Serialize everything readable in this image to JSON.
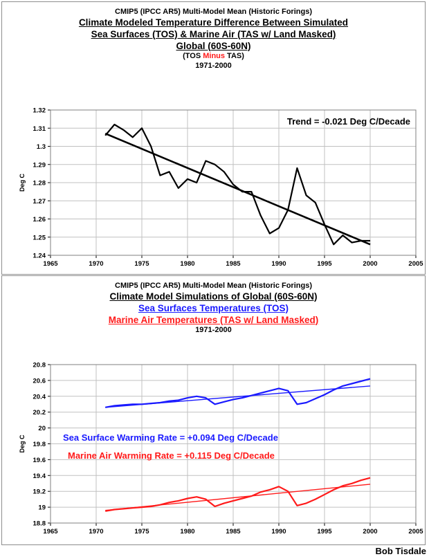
{
  "charts": {
    "top": {
      "title_lines": [
        "CMIP5 (IPCC AR5) Multi-Model Mean (Historic Forings)",
        "Climate Modeled Temperature Difference Between Simulated",
        "Sea Surfaces (TOS) & Marine Air (TAS w/ Land Masked)",
        "Global (60S-60N)"
      ],
      "subtitle_parts": [
        "(TOS ",
        "Minus",
        " TAS)"
      ],
      "period": "1971-2000",
      "annotation": "Trend = -0.021 Deg C/Decade"
    },
    "bottom": {
      "title_line1": "CMIP5 (IPCC AR5) Multi-Model Mean (Historic Forings)",
      "title_line2": "Climate Model Simulations of Global (60S-60N)",
      "series_title_blue": "Sea Surfaces Temperatures (TOS)",
      "series_title_red": "Marine Air Temperatures (TAS w/ Land Masked)",
      "period": "1971-2000",
      "annotation_blue": "Sea Surface Warming Rate = +0.094 Deg C/Decade",
      "annotation_red": "Marine Air Warming Rate = +0.115 Deg C/Decade"
    }
  },
  "credit": "Bob Tisdale",
  "colors": {
    "blue": "#1a1aff",
    "red": "#ff1a1a",
    "black": "#000000",
    "grid": "#c0c0c0"
  },
  "chart_data": [
    {
      "type": "line",
      "ylabel": "Deg C",
      "xlim": [
        1965,
        2005
      ],
      "ylim": [
        1.24,
        1.32
      ],
      "xticks": [
        "1965",
        "1970",
        "1975",
        "1980",
        "1985",
        "1990",
        "1995",
        "2000",
        "2005"
      ],
      "yticks": [
        "1.24",
        "1.25",
        "1.26",
        "1.27",
        "1.28",
        "1.29",
        "1.3",
        "1.31",
        "1.32"
      ],
      "grid": true,
      "series": [
        {
          "color": "#000000",
          "x": [
            1971,
            1972,
            1973,
            1974,
            1975,
            1976,
            1977,
            1978,
            1979,
            1980,
            1981,
            1982,
            1983,
            1984,
            1985,
            1986,
            1987,
            1988,
            1989,
            1990,
            1991,
            1992,
            1993,
            1994,
            1995,
            1996,
            1997,
            1998,
            1999,
            2000
          ],
          "values": [
            1.306,
            1.312,
            1.309,
            1.305,
            1.31,
            1.3,
            1.284,
            1.286,
            1.277,
            1.282,
            1.28,
            1.292,
            1.29,
            1.286,
            1.279,
            1.275,
            1.275,
            1.262,
            1.252,
            1.255,
            1.265,
            1.288,
            1.273,
            1.269,
            1.257,
            1.246,
            1.251,
            1.247,
            1.248,
            1.248
          ]
        },
        {
          "color": "#000000",
          "x": [
            1971,
            2000
          ],
          "values": [
            1.307,
            1.246
          ]
        }
      ]
    },
    {
      "type": "line",
      "ylabel": "Deg C",
      "xlim": [
        1965,
        2005
      ],
      "ylim": [
        18.8,
        20.8
      ],
      "xticks": [
        "1965",
        "1970",
        "1975",
        "1980",
        "1985",
        "1990",
        "1995",
        "2000",
        "2005"
      ],
      "yticks": [
        "18.8",
        "19",
        "19.2",
        "19.4",
        "19.6",
        "19.8",
        "20",
        "20.2",
        "20.4",
        "20.6",
        "20.8"
      ],
      "grid": true,
      "series": [
        {
          "color": "#1a1aff",
          "x": [
            1971,
            1972,
            1973,
            1974,
            1975,
            1976,
            1977,
            1978,
            1979,
            1980,
            1981,
            1982,
            1983,
            1984,
            1985,
            1986,
            1987,
            1988,
            1989,
            1990,
            1991,
            1992,
            1993,
            1994,
            1995,
            1996,
            1997,
            1998,
            1999,
            2000
          ],
          "values": [
            20.26,
            20.28,
            20.29,
            20.3,
            20.3,
            20.31,
            20.32,
            20.34,
            20.35,
            20.38,
            20.4,
            20.38,
            20.3,
            20.33,
            20.36,
            20.38,
            20.41,
            20.44,
            20.47,
            20.5,
            20.47,
            20.3,
            20.32,
            20.37,
            20.42,
            20.48,
            20.53,
            20.56,
            20.59,
            20.62
          ]
        },
        {
          "color": "#1a1aff",
          "x": [
            1971,
            2000
          ],
          "values": [
            20.26,
            20.53
          ]
        },
        {
          "color": "#ff1a1a",
          "x": [
            1971,
            1972,
            1973,
            1974,
            1975,
            1976,
            1977,
            1978,
            1979,
            1980,
            1981,
            1982,
            1983,
            1984,
            1985,
            1986,
            1987,
            1988,
            1989,
            1990,
            1991,
            1992,
            1993,
            1994,
            1995,
            1996,
            1997,
            1998,
            1999,
            2000
          ],
          "values": [
            18.95,
            18.97,
            18.98,
            18.99,
            19.0,
            19.01,
            19.03,
            19.06,
            19.08,
            19.11,
            19.13,
            19.1,
            19.01,
            19.05,
            19.08,
            19.11,
            19.14,
            19.19,
            19.22,
            19.26,
            19.2,
            19.02,
            19.05,
            19.1,
            19.16,
            19.22,
            19.27,
            19.3,
            19.34,
            19.37
          ]
        },
        {
          "color": "#ff1a1a",
          "x": [
            1971,
            2000
          ],
          "values": [
            18.96,
            19.29
          ]
        }
      ]
    }
  ]
}
